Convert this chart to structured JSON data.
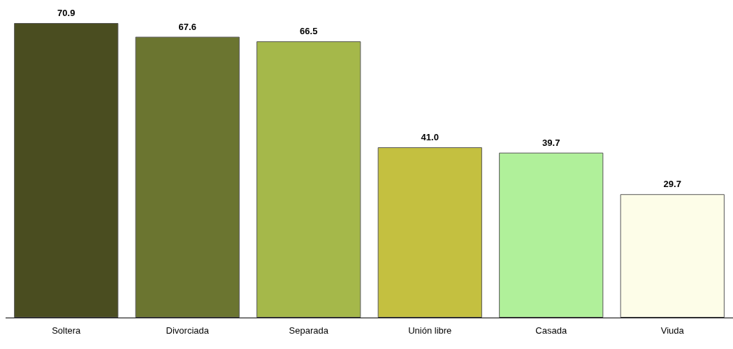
{
  "chart_data": {
    "type": "bar",
    "categories": [
      "Soltera",
      "Divorciada",
      "Separada",
      "Unión libre",
      "Casada",
      "Viuda"
    ],
    "values": [
      70.9,
      67.6,
      66.5,
      41.0,
      39.7,
      29.7
    ],
    "value_labels": [
      "70.9",
      "67.6",
      "66.5",
      "41.0",
      "39.7",
      "29.7"
    ],
    "colors": [
      "#4a4d20",
      "#6b7530",
      "#a5b84a",
      "#c4c040",
      "#b0f09a",
      "#fdfde8"
    ]
  }
}
